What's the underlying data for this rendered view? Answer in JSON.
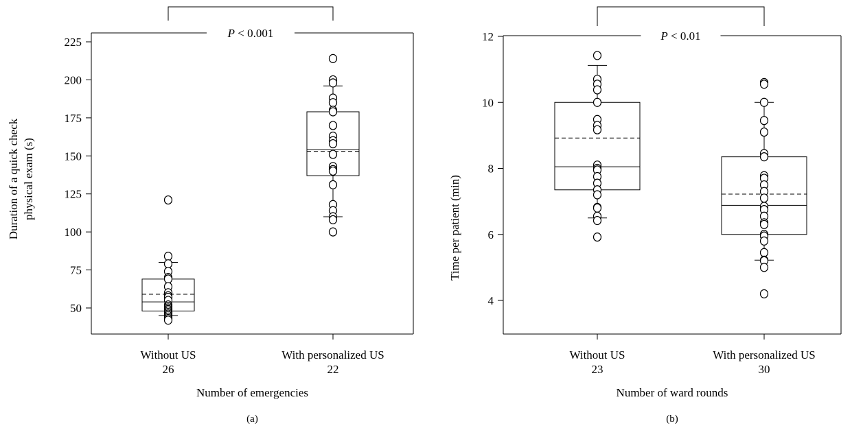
{
  "chart_data": [
    {
      "type": "box",
      "panel_label": "(a)",
      "xlabel": "Number of emergencies",
      "ylabel_lines": [
        "Duration of a quick check",
        "physical exam (s)"
      ],
      "ylim": [
        30,
        240
      ],
      "yticks": [
        50,
        75,
        100,
        125,
        150,
        175,
        200,
        225
      ],
      "significance": {
        "prefix": "P",
        "text": " < 0.001"
      },
      "categories": [
        {
          "label": "Without US",
          "count": "26"
        },
        {
          "label": "With personalized US",
          "count": "22"
        }
      ],
      "boxes": [
        {
          "whisker_low": 45,
          "q1": 48,
          "median": 54,
          "mean": 59,
          "q3": 69,
          "whisker_high": 80
        },
        {
          "whisker_low": 110,
          "q1": 137,
          "median": 154,
          "mean": 153,
          "q3": 179,
          "whisker_high": 196
        }
      ],
      "points": [
        [
          121,
          84,
          79,
          74,
          70,
          69,
          64,
          60,
          58,
          57,
          55,
          52,
          51,
          50,
          49,
          48,
          47,
          46,
          45,
          44,
          43,
          42
        ],
        [
          214,
          200,
          198,
          188,
          185,
          180,
          179,
          170,
          163,
          160,
          158,
          151,
          143,
          141,
          140,
          131,
          118,
          114,
          110,
          108,
          100
        ]
      ]
    },
    {
      "type": "box",
      "panel_label": "(b)",
      "xlabel": "Number of ward rounds",
      "ylabel_lines": [
        "Time per patient (min)"
      ],
      "ylim": [
        3.1,
        12
      ],
      "yticks": [
        4,
        6,
        8,
        10,
        12
      ],
      "significance": {
        "prefix": "P",
        "text": " < 0.01"
      },
      "categories": [
        {
          "label": "Without US",
          "count": "23"
        },
        {
          "label": "With personalized US",
          "count": "30"
        }
      ],
      "boxes": [
        {
          "whisker_low": 6.5,
          "q1": 7.35,
          "median": 8.05,
          "mean": 8.92,
          "q3": 10.0,
          "whisker_high": 11.12
        },
        {
          "whisker_low": 5.22,
          "q1": 6.0,
          "median": 6.88,
          "mean": 7.22,
          "q3": 8.35,
          "whisker_high": 10.0
        }
      ],
      "points": [
        [
          11.42,
          10.7,
          10.55,
          10.38,
          10.0,
          9.48,
          9.3,
          9.17,
          8.1,
          8.0,
          7.95,
          7.75,
          7.55,
          7.35,
          7.2,
          6.82,
          6.8,
          6.55,
          6.42,
          5.92
        ],
        [
          10.6,
          10.55,
          10.0,
          9.45,
          9.1,
          8.45,
          8.35,
          7.78,
          7.7,
          7.5,
          7.3,
          7.1,
          6.85,
          6.75,
          6.55,
          6.35,
          6.3,
          6.0,
          5.95,
          5.8,
          5.45,
          5.22,
          5.2,
          5.0,
          4.2
        ]
      ]
    }
  ]
}
